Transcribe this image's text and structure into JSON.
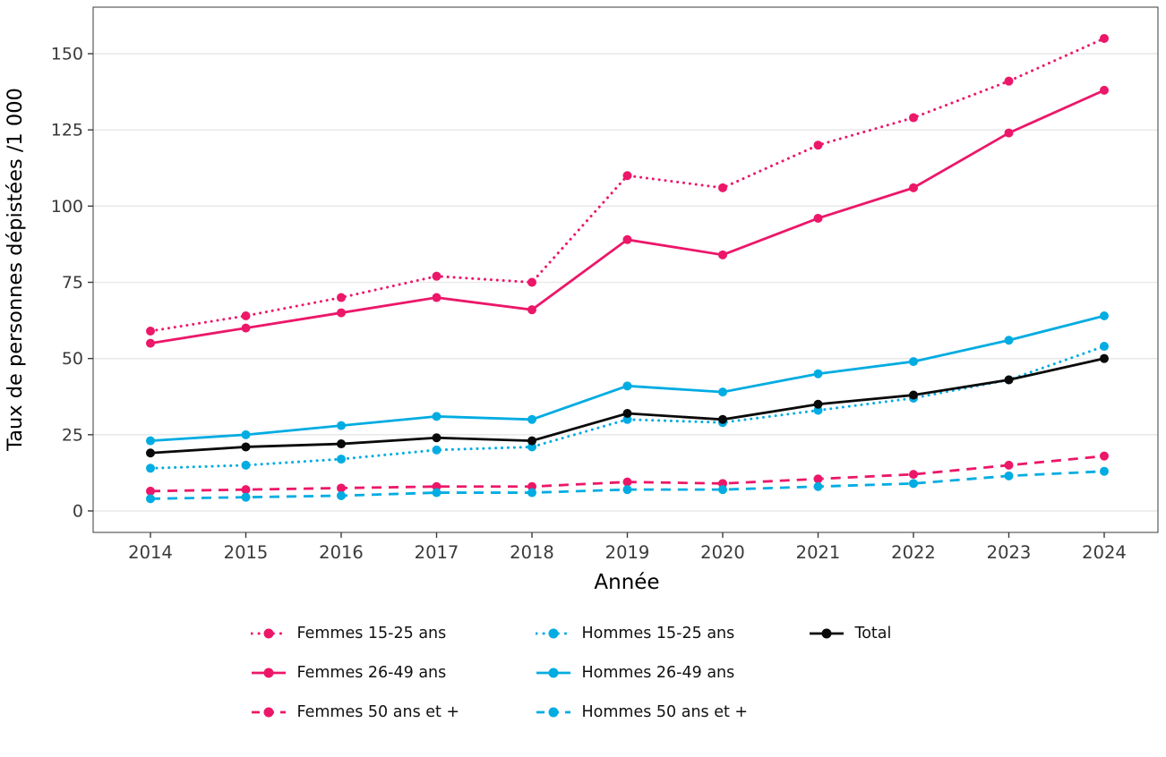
{
  "chart_data": {
    "type": "line",
    "title": "",
    "xlabel": "Année",
    "ylabel": "Taux de personnes dépistées /1 000",
    "x": [
      2014,
      2015,
      2016,
      2017,
      2018,
      2019,
      2020,
      2021,
      2022,
      2023,
      2024
    ],
    "yticks": [
      0,
      25,
      50,
      75,
      100,
      125,
      150
    ],
    "ylim": [
      -7,
      165
    ],
    "grid": "horizontal-only",
    "legend_position": "bottom",
    "colors": {
      "femmes": "#EC1769",
      "hommes": "#00ACE2",
      "total": "#0a0a0a",
      "gridline": "#e9e9e9",
      "spine": "#3a3a3a",
      "tick_label": "#3a3a3a"
    },
    "series": [
      {
        "name": "Femmes 15-25 ans",
        "color": "#EC1769",
        "style": "dotted",
        "values": [
          59,
          64,
          70,
          77,
          75,
          110,
          106,
          120,
          129,
          141,
          155
        ]
      },
      {
        "name": "Femmes 26-49 ans",
        "color": "#EC1769",
        "style": "solid",
        "values": [
          55,
          60,
          65,
          70,
          66,
          89,
          84,
          96,
          106,
          124,
          138
        ]
      },
      {
        "name": "Femmes 50 ans et +",
        "color": "#EC1769",
        "style": "dashed",
        "values": [
          6.5,
          7,
          7.5,
          8,
          8,
          9.5,
          9,
          10.5,
          12,
          15,
          18
        ]
      },
      {
        "name": "Hommes 15-25 ans",
        "color": "#00ACE2",
        "style": "dotted",
        "values": [
          14,
          15,
          17,
          20,
          21,
          30,
          29,
          33,
          37,
          43,
          54
        ]
      },
      {
        "name": "Hommes 26-49 ans",
        "color": "#00ACE2",
        "style": "solid",
        "values": [
          23,
          25,
          28,
          31,
          30,
          41,
          39,
          45,
          49,
          56,
          64
        ]
      },
      {
        "name": "Hommes 50 ans et +",
        "color": "#00ACE2",
        "style": "dashed",
        "values": [
          4,
          4.5,
          5,
          6,
          6,
          7,
          7,
          8,
          9,
          11.5,
          13
        ]
      },
      {
        "name": "Total",
        "color": "#0a0a0a",
        "style": "solid",
        "values": [
          19,
          21,
          22,
          24,
          23,
          32,
          30,
          35,
          38,
          43,
          50
        ]
      }
    ],
    "legend_rows": [
      [
        "Femmes 15-25 ans",
        "Hommes 15-25 ans",
        "Total"
      ],
      [
        "Femmes 26-49 ans",
        "Hommes 26-49 ans",
        ""
      ],
      [
        "Femmes 50 ans et +",
        "Hommes 50 ans et +",
        ""
      ]
    ]
  }
}
